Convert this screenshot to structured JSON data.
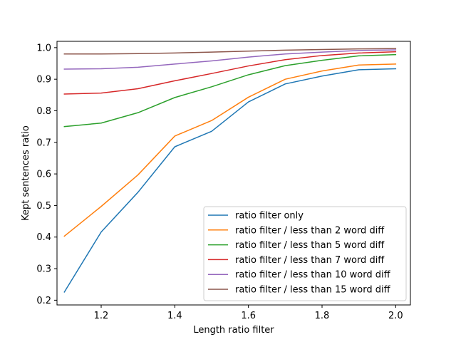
{
  "chart_data": {
    "type": "line",
    "title": "",
    "xlabel": "Length ratio filter",
    "ylabel": "Kept sentences ratio",
    "xlim": [
      1.08,
      2.04
    ],
    "ylim": [
      0.185,
      1.02
    ],
    "grid": false,
    "legend_position": "lower-right",
    "x": [
      1.1,
      1.2,
      1.3,
      1.4,
      1.5,
      1.6,
      1.7,
      1.8,
      1.9,
      2.0
    ],
    "xticks": [
      1.2,
      1.4,
      1.6,
      1.8,
      2.0
    ],
    "xtick_labels": [
      "1.2",
      "1.4",
      "1.6",
      "1.8",
      "2.0"
    ],
    "yticks": [
      0.2,
      0.3,
      0.4,
      0.5,
      0.6,
      0.7,
      0.8,
      0.9,
      1.0
    ],
    "ytick_labels": [
      "0.2",
      "0.3",
      "0.4",
      "0.5",
      "0.6",
      "0.7",
      "0.8",
      "0.9",
      "1.0"
    ],
    "series": [
      {
        "name": "ratio filter only",
        "color": "#1f77b4",
        "values": [
          0.226,
          0.416,
          0.542,
          0.686,
          0.735,
          0.828,
          0.885,
          0.91,
          0.93,
          0.933
        ]
      },
      {
        "name": "ratio filter / less than 2 word diff",
        "color": "#ff7f0e",
        "values": [
          0.403,
          0.497,
          0.597,
          0.72,
          0.769,
          0.843,
          0.9,
          0.926,
          0.945,
          0.948
        ]
      },
      {
        "name": "ratio filter / less than 5 word diff",
        "color": "#2ca02c",
        "values": [
          0.75,
          0.761,
          0.794,
          0.842,
          0.876,
          0.914,
          0.943,
          0.96,
          0.974,
          0.978
        ]
      },
      {
        "name": "ratio filter / less than 7 word diff",
        "color": "#d62728",
        "values": [
          0.853,
          0.856,
          0.87,
          0.895,
          0.918,
          0.942,
          0.962,
          0.975,
          0.983,
          0.987
        ]
      },
      {
        "name": "ratio filter / less than 10 word diff",
        "color": "#9467bd",
        "values": [
          0.932,
          0.933,
          0.938,
          0.948,
          0.958,
          0.97,
          0.98,
          0.986,
          0.991,
          0.993
        ]
      },
      {
        "name": "ratio filter / less than 15 word diff",
        "color": "#8c564b",
        "values": [
          0.98,
          0.98,
          0.981,
          0.983,
          0.986,
          0.989,
          0.992,
          0.994,
          0.996,
          0.997
        ]
      }
    ]
  }
}
